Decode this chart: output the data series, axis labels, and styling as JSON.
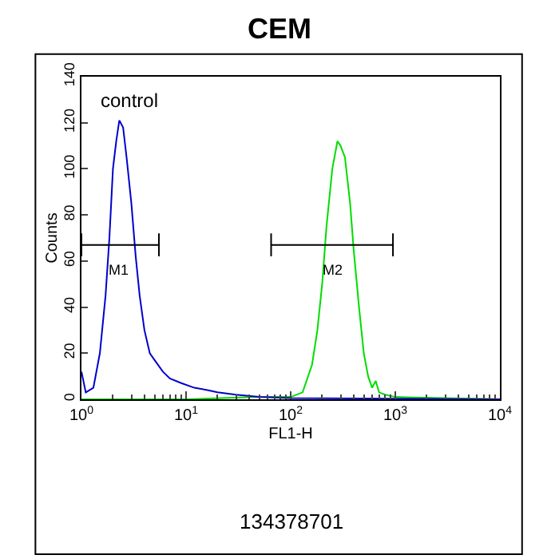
{
  "chart_data": {
    "type": "line",
    "title": "CEM",
    "xlabel": "FL1-H",
    "ylabel": "Counts",
    "annotations": [
      "control",
      "134378701",
      "M1",
      "M2"
    ],
    "log": "x",
    "xlim": [
      1,
      10000
    ],
    "ylim": [
      0,
      140
    ],
    "xticks": [
      {
        "value": 1,
        "label": "10$^{0}$"
      },
      {
        "value": 10,
        "label": "10$^{1}$"
      },
      {
        "value": 100,
        "label": "10$^{2}$"
      },
      {
        "value": 1000,
        "label": "10$^{3}$"
      },
      {
        "value": 10000,
        "label": "10$^{4}$"
      }
    ],
    "yticks": [
      0,
      20,
      40,
      60,
      80,
      100,
      120,
      140
    ],
    "marker": "none",
    "line_style": "solid",
    "series": [
      {
        "color": "#00dd00",
        "x": [
          1,
          10,
          50,
          100,
          130,
          160,
          180,
          200,
          220,
          250,
          280,
          300,
          330,
          370,
          400,
          450,
          500,
          550,
          600,
          650,
          700,
          800,
          1000,
          10000
        ],
        "values": [
          0,
          0,
          1,
          1,
          3,
          15,
          30,
          50,
          75,
          100,
          112,
          110,
          105,
          85,
          65,
          40,
          20,
          10,
          5,
          8,
          3,
          2,
          1,
          0
        ]
      },
      {
        "color": "#0000cc",
        "x": [
          1,
          1.1,
          1.3,
          1.5,
          1.7,
          1.85,
          2.0,
          2.15,
          2.3,
          2.5,
          2.7,
          3.0,
          3.3,
          3.6,
          4,
          4.5,
          5,
          6,
          7,
          9,
          12,
          16,
          20,
          30,
          50,
          100,
          1000,
          10000
        ],
        "values": [
          12,
          3,
          5,
          20,
          45,
          70,
          100,
          112,
          121,
          118,
          105,
          85,
          62,
          45,
          30,
          20,
          17,
          12,
          9,
          7,
          5,
          4,
          3,
          2,
          1,
          0.5,
          0.3,
          0
        ]
      },
      {
        "color": "#000000",
        "x": [
          1,
          1,
          1,
          5.5,
          5.5,
          5.5
        ],
        "values": [
          62,
          72,
          67,
          67,
          72,
          62
        ]
      },
      {
        "color": "#000000",
        "x": [
          65,
          65,
          65,
          950,
          950,
          950
        ],
        "values": [
          62,
          72,
          67,
          67,
          72,
          62
        ]
      }
    ]
  }
}
